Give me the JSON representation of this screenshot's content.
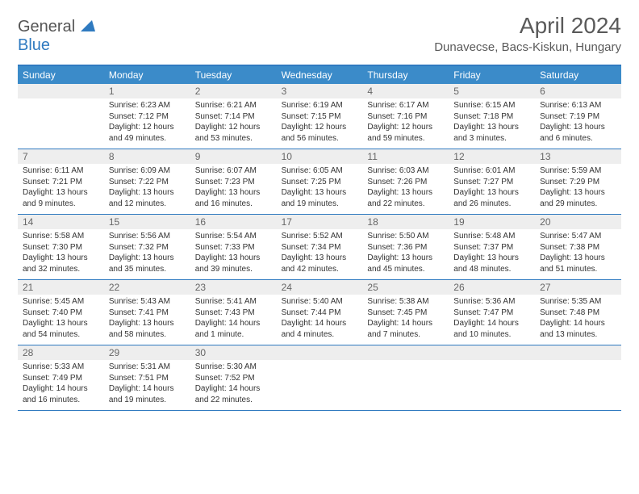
{
  "logo": {
    "word1": "General",
    "word2": "Blue"
  },
  "title": "April 2024",
  "location": "Dunavecse, Bacs-Kiskun, Hungary",
  "dow": [
    "Sunday",
    "Monday",
    "Tuesday",
    "Wednesday",
    "Thursday",
    "Friday",
    "Saturday"
  ],
  "colors": {
    "accent": "#2f7ac0",
    "header_bg": "#3b8bc9",
    "daynum_bg": "#eeeeee"
  },
  "weeks": [
    {
      "nums": [
        "",
        "1",
        "2",
        "3",
        "4",
        "5",
        "6"
      ],
      "cells": [
        null,
        {
          "sunrise": "Sunrise: 6:23 AM",
          "sunset": "Sunset: 7:12 PM",
          "daylight": "Daylight: 12 hours and 49 minutes."
        },
        {
          "sunrise": "Sunrise: 6:21 AM",
          "sunset": "Sunset: 7:14 PM",
          "daylight": "Daylight: 12 hours and 53 minutes."
        },
        {
          "sunrise": "Sunrise: 6:19 AM",
          "sunset": "Sunset: 7:15 PM",
          "daylight": "Daylight: 12 hours and 56 minutes."
        },
        {
          "sunrise": "Sunrise: 6:17 AM",
          "sunset": "Sunset: 7:16 PM",
          "daylight": "Daylight: 12 hours and 59 minutes."
        },
        {
          "sunrise": "Sunrise: 6:15 AM",
          "sunset": "Sunset: 7:18 PM",
          "daylight": "Daylight: 13 hours and 3 minutes."
        },
        {
          "sunrise": "Sunrise: 6:13 AM",
          "sunset": "Sunset: 7:19 PM",
          "daylight": "Daylight: 13 hours and 6 minutes."
        }
      ]
    },
    {
      "nums": [
        "7",
        "8",
        "9",
        "10",
        "11",
        "12",
        "13"
      ],
      "cells": [
        {
          "sunrise": "Sunrise: 6:11 AM",
          "sunset": "Sunset: 7:21 PM",
          "daylight": "Daylight: 13 hours and 9 minutes."
        },
        {
          "sunrise": "Sunrise: 6:09 AM",
          "sunset": "Sunset: 7:22 PM",
          "daylight": "Daylight: 13 hours and 12 minutes."
        },
        {
          "sunrise": "Sunrise: 6:07 AM",
          "sunset": "Sunset: 7:23 PM",
          "daylight": "Daylight: 13 hours and 16 minutes."
        },
        {
          "sunrise": "Sunrise: 6:05 AM",
          "sunset": "Sunset: 7:25 PM",
          "daylight": "Daylight: 13 hours and 19 minutes."
        },
        {
          "sunrise": "Sunrise: 6:03 AM",
          "sunset": "Sunset: 7:26 PM",
          "daylight": "Daylight: 13 hours and 22 minutes."
        },
        {
          "sunrise": "Sunrise: 6:01 AM",
          "sunset": "Sunset: 7:27 PM",
          "daylight": "Daylight: 13 hours and 26 minutes."
        },
        {
          "sunrise": "Sunrise: 5:59 AM",
          "sunset": "Sunset: 7:29 PM",
          "daylight": "Daylight: 13 hours and 29 minutes."
        }
      ]
    },
    {
      "nums": [
        "14",
        "15",
        "16",
        "17",
        "18",
        "19",
        "20"
      ],
      "cells": [
        {
          "sunrise": "Sunrise: 5:58 AM",
          "sunset": "Sunset: 7:30 PM",
          "daylight": "Daylight: 13 hours and 32 minutes."
        },
        {
          "sunrise": "Sunrise: 5:56 AM",
          "sunset": "Sunset: 7:32 PM",
          "daylight": "Daylight: 13 hours and 35 minutes."
        },
        {
          "sunrise": "Sunrise: 5:54 AM",
          "sunset": "Sunset: 7:33 PM",
          "daylight": "Daylight: 13 hours and 39 minutes."
        },
        {
          "sunrise": "Sunrise: 5:52 AM",
          "sunset": "Sunset: 7:34 PM",
          "daylight": "Daylight: 13 hours and 42 minutes."
        },
        {
          "sunrise": "Sunrise: 5:50 AM",
          "sunset": "Sunset: 7:36 PM",
          "daylight": "Daylight: 13 hours and 45 minutes."
        },
        {
          "sunrise": "Sunrise: 5:48 AM",
          "sunset": "Sunset: 7:37 PM",
          "daylight": "Daylight: 13 hours and 48 minutes."
        },
        {
          "sunrise": "Sunrise: 5:47 AM",
          "sunset": "Sunset: 7:38 PM",
          "daylight": "Daylight: 13 hours and 51 minutes."
        }
      ]
    },
    {
      "nums": [
        "21",
        "22",
        "23",
        "24",
        "25",
        "26",
        "27"
      ],
      "cells": [
        {
          "sunrise": "Sunrise: 5:45 AM",
          "sunset": "Sunset: 7:40 PM",
          "daylight": "Daylight: 13 hours and 54 minutes."
        },
        {
          "sunrise": "Sunrise: 5:43 AM",
          "sunset": "Sunset: 7:41 PM",
          "daylight": "Daylight: 13 hours and 58 minutes."
        },
        {
          "sunrise": "Sunrise: 5:41 AM",
          "sunset": "Sunset: 7:43 PM",
          "daylight": "Daylight: 14 hours and 1 minute."
        },
        {
          "sunrise": "Sunrise: 5:40 AM",
          "sunset": "Sunset: 7:44 PM",
          "daylight": "Daylight: 14 hours and 4 minutes."
        },
        {
          "sunrise": "Sunrise: 5:38 AM",
          "sunset": "Sunset: 7:45 PM",
          "daylight": "Daylight: 14 hours and 7 minutes."
        },
        {
          "sunrise": "Sunrise: 5:36 AM",
          "sunset": "Sunset: 7:47 PM",
          "daylight": "Daylight: 14 hours and 10 minutes."
        },
        {
          "sunrise": "Sunrise: 5:35 AM",
          "sunset": "Sunset: 7:48 PM",
          "daylight": "Daylight: 14 hours and 13 minutes."
        }
      ]
    },
    {
      "nums": [
        "28",
        "29",
        "30",
        "",
        "",
        "",
        ""
      ],
      "cells": [
        {
          "sunrise": "Sunrise: 5:33 AM",
          "sunset": "Sunset: 7:49 PM",
          "daylight": "Daylight: 14 hours and 16 minutes."
        },
        {
          "sunrise": "Sunrise: 5:31 AM",
          "sunset": "Sunset: 7:51 PM",
          "daylight": "Daylight: 14 hours and 19 minutes."
        },
        {
          "sunrise": "Sunrise: 5:30 AM",
          "sunset": "Sunset: 7:52 PM",
          "daylight": "Daylight: 14 hours and 22 minutes."
        },
        null,
        null,
        null,
        null
      ]
    }
  ]
}
